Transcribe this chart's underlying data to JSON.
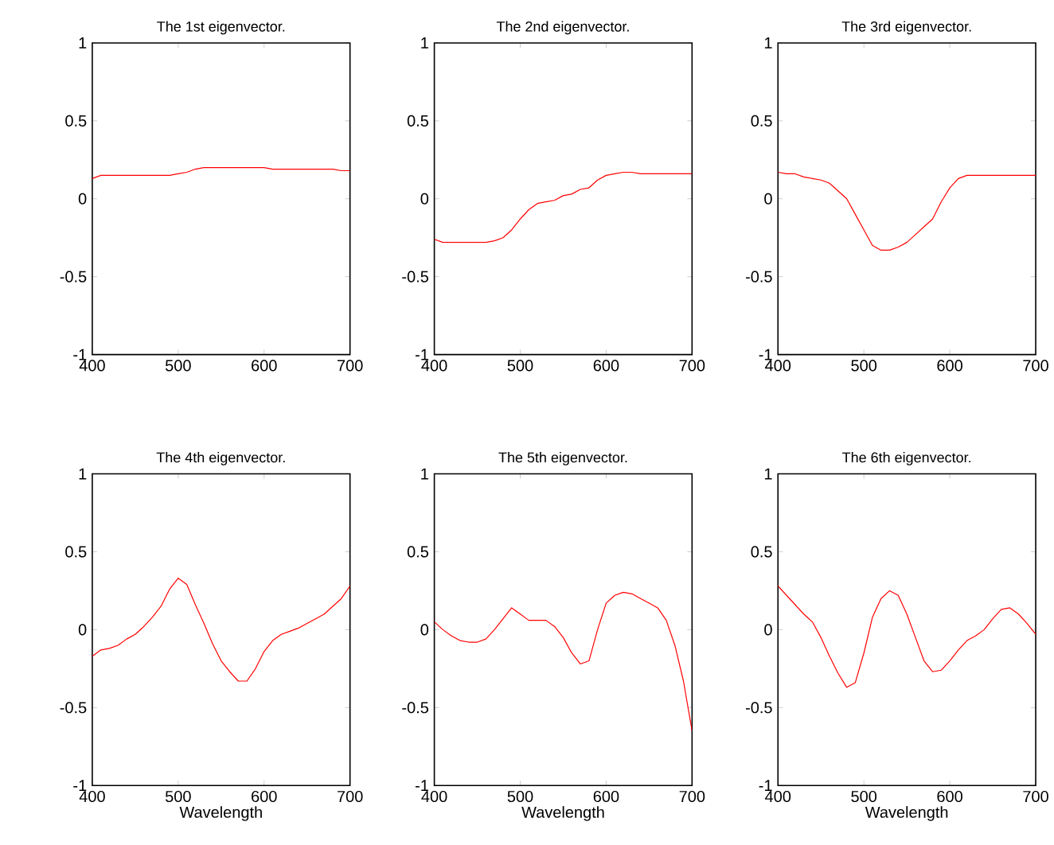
{
  "chart_data": [
    {
      "type": "line",
      "title": "The 1st eigenvector.",
      "x": [
        400,
        410,
        420,
        430,
        440,
        450,
        460,
        470,
        480,
        490,
        500,
        510,
        520,
        530,
        540,
        550,
        560,
        570,
        580,
        590,
        600,
        610,
        620,
        630,
        640,
        650,
        660,
        670,
        680,
        690,
        700
      ],
      "xlim": [
        400,
        700
      ],
      "ylim": [
        -1,
        1
      ],
      "xticks": [
        400,
        500,
        600,
        700
      ],
      "yticks": [
        -1,
        -0.5,
        0,
        0.5,
        1
      ],
      "series": [
        {
          "color": "#ff0000",
          "values": [
            0.13,
            0.15,
            0.15,
            0.15,
            0.15,
            0.15,
            0.15,
            0.15,
            0.15,
            0.15,
            0.16,
            0.17,
            0.19,
            0.2,
            0.2,
            0.2,
            0.2,
            0.2,
            0.2,
            0.2,
            0.2,
            0.19,
            0.19,
            0.19,
            0.19,
            0.19,
            0.19,
            0.19,
            0.19,
            0.18,
            0.18
          ]
        }
      ]
    },
    {
      "type": "line",
      "title": "The 2nd eigenvector.",
      "x": [
        400,
        410,
        420,
        430,
        440,
        450,
        460,
        470,
        480,
        490,
        500,
        510,
        520,
        530,
        540,
        550,
        560,
        570,
        580,
        590,
        600,
        610,
        620,
        630,
        640,
        650,
        660,
        670,
        680,
        690,
        700
      ],
      "xlim": [
        400,
        700
      ],
      "ylim": [
        -1,
        1
      ],
      "xticks": [
        400,
        500,
        600,
        700
      ],
      "yticks": [
        -1,
        -0.5,
        0,
        0.5,
        1
      ],
      "series": [
        {
          "color": "#ff0000",
          "values": [
            -0.26,
            -0.28,
            -0.28,
            -0.28,
            -0.28,
            -0.28,
            -0.28,
            -0.27,
            -0.25,
            -0.2,
            -0.13,
            -0.07,
            -0.03,
            -0.02,
            -0.01,
            0.02,
            0.03,
            0.06,
            0.07,
            0.12,
            0.15,
            0.16,
            0.17,
            0.17,
            0.16,
            0.16,
            0.16,
            0.16,
            0.16,
            0.16,
            0.16
          ]
        }
      ]
    },
    {
      "type": "line",
      "title": "The 3rd eigenvector.",
      "x": [
        400,
        410,
        420,
        430,
        440,
        450,
        460,
        470,
        480,
        490,
        500,
        510,
        520,
        530,
        540,
        550,
        560,
        570,
        580,
        590,
        600,
        610,
        620,
        630,
        640,
        650,
        660,
        670,
        680,
        690,
        700
      ],
      "xlim": [
        400,
        700
      ],
      "ylim": [
        -1,
        1
      ],
      "xticks": [
        400,
        500,
        600,
        700
      ],
      "yticks": [
        -1,
        -0.5,
        0,
        0.5,
        1
      ],
      "series": [
        {
          "color": "#ff0000",
          "values": [
            0.17,
            0.16,
            0.16,
            0.14,
            0.13,
            0.12,
            0.1,
            0.05,
            0.0,
            -0.1,
            -0.2,
            -0.3,
            -0.33,
            -0.33,
            -0.31,
            -0.28,
            -0.23,
            -0.18,
            -0.13,
            -0.02,
            0.07,
            0.13,
            0.15,
            0.15,
            0.15,
            0.15,
            0.15,
            0.15,
            0.15,
            0.15,
            0.15
          ]
        }
      ]
    },
    {
      "type": "line",
      "title": "The 4th eigenvector.",
      "xlabel": "Wavelength",
      "x": [
        400,
        410,
        420,
        430,
        440,
        450,
        460,
        470,
        480,
        490,
        500,
        510,
        520,
        530,
        540,
        550,
        560,
        570,
        580,
        590,
        600,
        610,
        620,
        630,
        640,
        650,
        660,
        670,
        680,
        690,
        700
      ],
      "xlim": [
        400,
        700
      ],
      "ylim": [
        -1,
        1
      ],
      "xticks": [
        400,
        500,
        600,
        700
      ],
      "yticks": [
        -1,
        -0.5,
        0,
        0.5,
        1
      ],
      "series": [
        {
          "color": "#ff0000",
          "values": [
            -0.17,
            -0.13,
            -0.12,
            -0.1,
            -0.06,
            -0.03,
            0.02,
            0.08,
            0.15,
            0.26,
            0.33,
            0.29,
            0.16,
            0.04,
            -0.09,
            -0.2,
            -0.27,
            -0.33,
            -0.33,
            -0.25,
            -0.14,
            -0.07,
            -0.03,
            -0.01,
            0.01,
            0.04,
            0.07,
            0.1,
            0.15,
            0.2,
            0.28
          ]
        }
      ]
    },
    {
      "type": "line",
      "title": "The 5th eigenvector.",
      "xlabel": "Wavelength",
      "x": [
        400,
        410,
        420,
        430,
        440,
        450,
        460,
        470,
        480,
        490,
        500,
        510,
        520,
        530,
        540,
        550,
        560,
        570,
        580,
        590,
        600,
        610,
        620,
        630,
        640,
        650,
        660,
        670,
        680,
        690,
        700
      ],
      "xlim": [
        400,
        700
      ],
      "ylim": [
        -1,
        1
      ],
      "xticks": [
        400,
        500,
        600,
        700
      ],
      "yticks": [
        -1,
        -0.5,
        0,
        0.5,
        1
      ],
      "series": [
        {
          "color": "#ff0000",
          "values": [
            0.05,
            0.0,
            -0.04,
            -0.07,
            -0.08,
            -0.08,
            -0.06,
            0.0,
            0.07,
            0.14,
            0.1,
            0.06,
            0.06,
            0.06,
            0.02,
            -0.05,
            -0.15,
            -0.22,
            -0.2,
            0.0,
            0.17,
            0.22,
            0.24,
            0.23,
            0.2,
            0.17,
            0.14,
            0.06,
            -0.1,
            -0.33,
            -0.65
          ]
        }
      ]
    },
    {
      "type": "line",
      "title": "The 6th eigenvector.",
      "xlabel": "Wavelength",
      "x": [
        400,
        410,
        420,
        430,
        440,
        450,
        460,
        470,
        480,
        490,
        500,
        510,
        520,
        530,
        540,
        550,
        560,
        570,
        580,
        590,
        600,
        610,
        620,
        630,
        640,
        650,
        660,
        670,
        680,
        690,
        700
      ],
      "xlim": [
        400,
        700
      ],
      "ylim": [
        -1,
        1
      ],
      "xticks": [
        400,
        500,
        600,
        700
      ],
      "yticks": [
        -1,
        -0.5,
        0,
        0.5,
        1
      ],
      "series": [
        {
          "color": "#ff0000",
          "values": [
            0.28,
            0.22,
            0.16,
            0.1,
            0.05,
            -0.05,
            -0.17,
            -0.28,
            -0.37,
            -0.34,
            -0.15,
            0.08,
            0.2,
            0.25,
            0.22,
            0.1,
            -0.05,
            -0.2,
            -0.27,
            -0.26,
            -0.2,
            -0.13,
            -0.07,
            -0.04,
            0.0,
            0.07,
            0.13,
            0.14,
            0.1,
            0.04,
            -0.03
          ]
        }
      ]
    }
  ]
}
